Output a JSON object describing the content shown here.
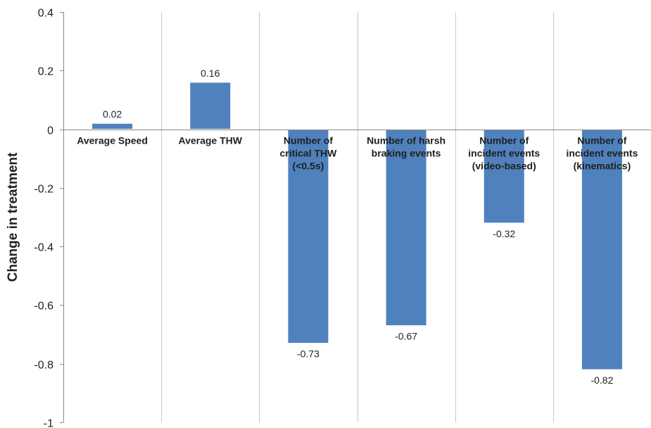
{
  "chart_data": {
    "type": "bar",
    "title": "",
    "xlabel": "",
    "ylabel": "Change in treatment",
    "categories": [
      [
        "Average Speed"
      ],
      [
        "Average THW"
      ],
      [
        "Number of",
        "critical THW",
        "(<0.5s)"
      ],
      [
        "Number of harsh",
        "braking events"
      ],
      [
        "Number of",
        "incident events",
        "(video-based)"
      ],
      [
        "Number of",
        "incident events",
        "(kinematics)"
      ]
    ],
    "values": [
      0.02,
      0.16,
      -0.73,
      -0.67,
      -0.32,
      -0.82
    ],
    "data_labels": [
      "0.02",
      "0.16",
      "-0.73",
      "-0.67",
      "-0.32",
      "-0.82"
    ],
    "ylim": [
      -1,
      0.4
    ],
    "yticks": [
      0.4,
      0.2,
      0,
      -0.2,
      -0.4,
      -0.6,
      -0.8,
      -1
    ],
    "ytick_labels": [
      "0.4",
      "0.2",
      "0",
      "-0.2",
      "-0.4",
      "-0.6",
      "-0.8",
      "-1"
    ],
    "grid": "vertical category dividers",
    "legend": "none",
    "colors": {
      "bar": "#4f81bd",
      "bar_edge": "#ffffff",
      "grid": "#c8c8c8",
      "axis": "#888888",
      "text": "#1f1f1f"
    }
  }
}
